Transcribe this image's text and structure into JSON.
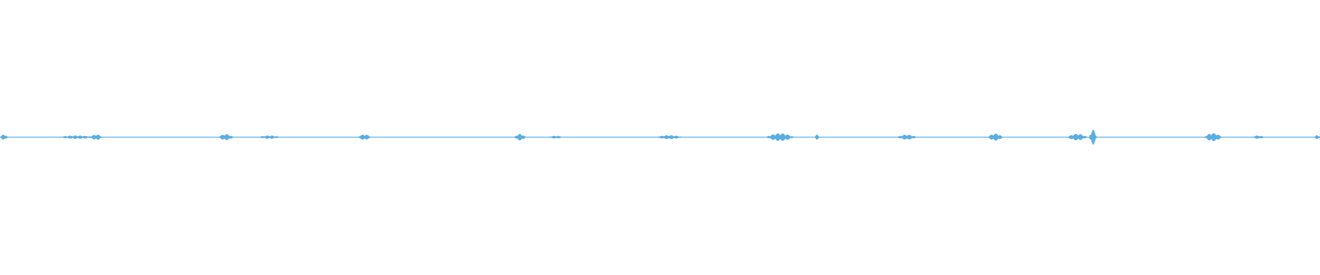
{
  "waveform": {
    "color": "#5aade0",
    "bursts": [
      {
        "t": 0.003,
        "width": 0.006,
        "amp": 0.02
      },
      {
        "t": 0.058,
        "width": 0.03,
        "amp": 0.012
      },
      {
        "t": 0.073,
        "width": 0.01,
        "amp": 0.02
      },
      {
        "t": 0.171,
        "width": 0.012,
        "amp": 0.022
      },
      {
        "t": 0.204,
        "width": 0.018,
        "amp": 0.012
      },
      {
        "t": 0.276,
        "width": 0.011,
        "amp": 0.02
      },
      {
        "t": 0.394,
        "width": 0.009,
        "amp": 0.024
      },
      {
        "t": 0.421,
        "width": 0.012,
        "amp": 0.01
      },
      {
        "t": 0.507,
        "width": 0.022,
        "amp": 0.014
      },
      {
        "t": 0.591,
        "width": 0.022,
        "amp": 0.028
      },
      {
        "t": 0.619,
        "width": 0.004,
        "amp": 0.018
      },
      {
        "t": 0.687,
        "width": 0.016,
        "amp": 0.018
      },
      {
        "t": 0.754,
        "width": 0.012,
        "amp": 0.026
      },
      {
        "t": 0.816,
        "width": 0.016,
        "amp": 0.024
      },
      {
        "t": 0.828,
        "width": 0.006,
        "amp": 0.055
      },
      {
        "t": 0.919,
        "width": 0.014,
        "amp": 0.03
      },
      {
        "t": 0.953,
        "width": 0.01,
        "amp": 0.012
      },
      {
        "t": 0.998,
        "width": 0.004,
        "amp": 0.018
      }
    ]
  }
}
